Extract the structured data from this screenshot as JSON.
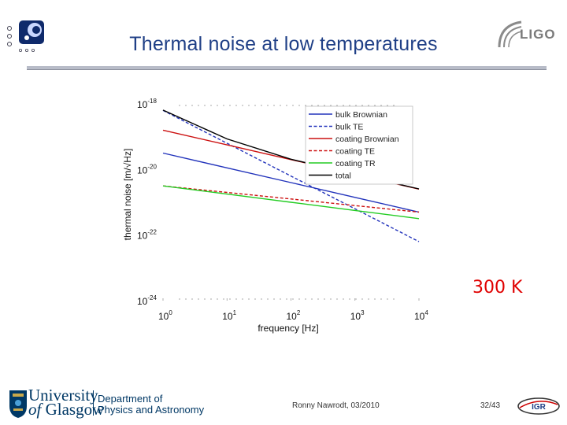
{
  "slide": {
    "title": "Thermal noise at low temperatures",
    "temperature_label": "300 K",
    "author": "Ronny Nawrodt, 03/2010",
    "page": "32/43",
    "logos": {
      "top_right": "LIGO",
      "university_line1": "University",
      "university_line2_a": "of",
      "university_line2_b": "Glasgow",
      "department_line1": "Department of",
      "department_line2": "Physics and Astronomy",
      "bottom_right": "IGR"
    }
  },
  "chart_data": {
    "type": "line",
    "xlabel": "frequency [Hz]",
    "ylabel": "thermal noise [m/√Hz]",
    "x_scale": "log",
    "y_scale": "log",
    "xlim": [
      1,
      10000
    ],
    "ylim": [
      1e-24,
      1e-18
    ],
    "x_ticks": [
      {
        "base": "10",
        "exp": "0"
      },
      {
        "base": "10",
        "exp": "1"
      },
      {
        "base": "10",
        "exp": "2"
      },
      {
        "base": "10",
        "exp": "3"
      },
      {
        "base": "10",
        "exp": "4"
      }
    ],
    "y_ticks": [
      {
        "base": "10",
        "exp": "-18"
      },
      {
        "base": "10",
        "exp": "-20"
      },
      {
        "base": "10",
        "exp": "-22"
      },
      {
        "base": "10",
        "exp": "-24"
      }
    ],
    "legend_position": "top-right",
    "grid": false,
    "series": [
      {
        "name": "bulk Brownian",
        "color": "#2233bb",
        "dash": "solid",
        "x": [
          1,
          10,
          100,
          1000,
          10000
        ],
        "y": [
          3.16e-20,
          1.12e-20,
          3.98e-21,
          1.41e-21,
          5.01e-22
        ]
      },
      {
        "name": "bulk TE",
        "color": "#2233bb",
        "dash": "dashed",
        "x": [
          1,
          10,
          100,
          1000,
          10000
        ],
        "y": [
          6.31e-19,
          6.31e-20,
          6.31e-21,
          6.31e-22,
          6.31e-23
        ]
      },
      {
        "name": "coating Brownian",
        "color": "#cc1111",
        "dash": "solid",
        "x": [
          1,
          10,
          100,
          1000,
          10000
        ],
        "y": [
          1.58e-19,
          5.62e-20,
          2e-20,
          7.08e-21,
          2.51e-21
        ]
      },
      {
        "name": "coating TE",
        "color": "#cc1111",
        "dash": "dashed",
        "x": [
          1,
          10,
          100,
          1000,
          10000
        ],
        "y": [
          3.16e-21,
          2e-21,
          1.26e-21,
          7.94e-22,
          5.01e-22
        ]
      },
      {
        "name": "coating TR",
        "color": "#22cc22",
        "dash": "solid",
        "x": [
          1,
          10,
          100,
          1000,
          10000
        ],
        "y": [
          3.16e-21,
          1.78e-21,
          1e-21,
          5.62e-22,
          3.16e-22
        ]
      },
      {
        "name": "total",
        "color": "#000000",
        "dash": "solid",
        "x": [
          1,
          10,
          100,
          1000,
          10000
        ],
        "y": [
          6.46e-19,
          8.55e-20,
          2.06e-20,
          7.2e-21,
          2.56e-21
        ]
      }
    ]
  }
}
